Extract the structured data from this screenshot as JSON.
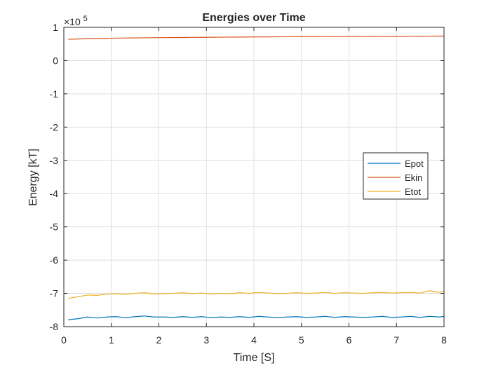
{
  "chart_data": {
    "type": "line",
    "title": "Energies over Time",
    "xlabel": "Time [S]",
    "ylabel": "Energy [kT]",
    "exponent_label": {
      "base": "×10",
      "power": "5"
    },
    "xlim": [
      0,
      8
    ],
    "ylim": [
      -800000,
      100000
    ],
    "x_ticks": [
      0,
      1,
      2,
      3,
      4,
      5,
      6,
      7,
      8
    ],
    "x_tick_labels": [
      "0",
      "1",
      "2",
      "3",
      "4",
      "5",
      "6",
      "7",
      "8"
    ],
    "y_ticks": [
      -800000,
      -700000,
      -600000,
      -500000,
      -400000,
      -300000,
      -200000,
      -100000,
      0,
      100000
    ],
    "y_tick_labels": [
      "-8",
      "-7",
      "-6",
      "-5",
      "-4",
      "-3",
      "-2",
      "-1",
      "0",
      "1"
    ],
    "grid": true,
    "legend_placement": "right",
    "x": [
      0.1,
      0.3,
      0.5,
      0.7,
      0.9,
      1.1,
      1.3,
      1.5,
      1.7,
      1.9,
      2.1,
      2.3,
      2.5,
      2.7,
      2.9,
      3.1,
      3.3,
      3.5,
      3.7,
      3.9,
      4.1,
      4.3,
      4.5,
      4.7,
      4.9,
      5.1,
      5.3,
      5.5,
      5.7,
      5.9,
      6.1,
      6.3,
      6.5,
      6.7,
      6.9,
      7.1,
      7.3,
      7.5,
      7.7,
      7.9,
      8.0
    ],
    "series": [
      {
        "name": "Epot",
        "color": "#0072BD",
        "values": [
          -779000,
          -776000,
          -771000,
          -774000,
          -771000,
          -770000,
          -773000,
          -770000,
          -768000,
          -771000,
          -771000,
          -772000,
          -770000,
          -772000,
          -770000,
          -773000,
          -771000,
          -772000,
          -770000,
          -772000,
          -769000,
          -771000,
          -773000,
          -771000,
          -770000,
          -772000,
          -771000,
          -769000,
          -772000,
          -770000,
          -771000,
          -772000,
          -771000,
          -769000,
          -772000,
          -771000,
          -769000,
          -772000,
          -769000,
          -771000,
          -769000
        ]
      },
      {
        "name": "Ekin",
        "color": "#D95319",
        "values": [
          64000,
          65000,
          66000,
          66500,
          67000,
          67500,
          68000,
          68200,
          68500,
          68800,
          69000,
          69300,
          69500,
          69800,
          70000,
          70200,
          70400,
          70600,
          70800,
          71000,
          71200,
          71300,
          71500,
          71700,
          71800,
          72000,
          72100,
          72200,
          72400,
          72500,
          72600,
          72700,
          72800,
          73000,
          73100,
          73200,
          73300,
          73400,
          73500,
          73600,
          73700
        ]
      },
      {
        "name": "Etot",
        "color": "#EDB120",
        "values": [
          -715000,
          -710000,
          -705000,
          -706000,
          -702000,
          -701000,
          -703000,
          -700000,
          -698000,
          -702000,
          -701000,
          -700000,
          -698000,
          -701000,
          -699000,
          -702000,
          -700000,
          -701000,
          -698000,
          -700000,
          -697000,
          -699000,
          -701000,
          -700000,
          -698000,
          -700000,
          -699000,
          -697000,
          -700000,
          -698000,
          -699000,
          -700000,
          -698000,
          -697000,
          -699000,
          -698000,
          -697000,
          -699000,
          -692000,
          -697000,
          -694000
        ]
      }
    ]
  }
}
